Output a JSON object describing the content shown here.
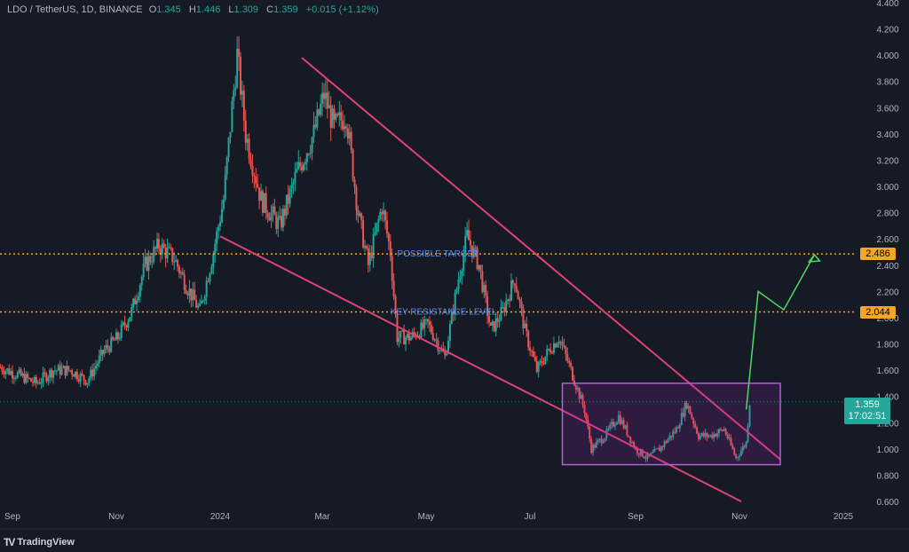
{
  "header": {
    "symbol": "LDO / TetherUS, 1D, BINANCE",
    "open_label": "O",
    "open": "1.345",
    "high_label": "H",
    "high": "1.446",
    "low_label": "L",
    "low": "1.309",
    "close_label": "C",
    "close": "1.359",
    "change": "+0.015 (+1.12%)"
  },
  "annotations": {
    "possible_target": "POSSIBLE TARGET",
    "key_resistance": "KEY RESISTANCE LEVEL"
  },
  "price_tags": {
    "target": "2.486",
    "resistance": "2.044",
    "last_price": "1.359",
    "countdown": "17:02:51"
  },
  "branding": {
    "name": "TradingView"
  },
  "colors": {
    "background": "#161a25",
    "up": "#26a69a",
    "down": "#ef5350",
    "channel": "#e0407a",
    "range_box": "#b05fd0",
    "level_line": "#f5a623",
    "projection": "#4cd964"
  },
  "chart_data": {
    "type": "candlestick",
    "y_axis_ticks": [
      "4.400",
      "4.200",
      "4.000",
      "3.800",
      "3.600",
      "3.400",
      "3.200",
      "3.000",
      "2.800",
      "2.600",
      "2.400",
      "2.200",
      "2.000",
      "1.800",
      "1.600",
      "1.400",
      "1.200",
      "1.000",
      "0.800",
      "0.600"
    ],
    "x_axis_ticks": [
      "Sep",
      "Nov",
      "2024",
      "Mar",
      "May",
      "Jul",
      "Sep",
      "Nov",
      "2025"
    ],
    "ylim": [
      0.6,
      4.4
    ],
    "horizontal_levels": [
      {
        "label": "POSSIBLE TARGET",
        "value": 2.486
      },
      {
        "label": "KEY RESISTANCE LEVEL",
        "value": 2.044
      }
    ],
    "last_price": 1.359,
    "price_path": [
      [
        "2023-08-25",
        1.62
      ],
      [
        "2023-09-05",
        1.56
      ],
      [
        "2023-09-15",
        1.5
      ],
      [
        "2023-09-25",
        1.6
      ],
      [
        "2023-10-05",
        1.6
      ],
      [
        "2023-10-15",
        1.52
      ],
      [
        "2023-10-25",
        1.75
      ],
      [
        "2023-11-02",
        1.85
      ],
      [
        "2023-11-10",
        2.05
      ],
      [
        "2023-11-18",
        2.4
      ],
      [
        "2023-11-26",
        2.55
      ],
      [
        "2023-12-05",
        2.45
      ],
      [
        "2023-12-12",
        2.25
      ],
      [
        "2023-12-20",
        2.05
      ],
      [
        "2023-12-28",
        2.5
      ],
      [
        "2024-01-03",
        2.9
      ],
      [
        "2024-01-08",
        3.6
      ],
      [
        "2024-01-11",
        4.0
      ],
      [
        "2024-01-16",
        3.4
      ],
      [
        "2024-01-25",
        2.9
      ],
      [
        "2024-02-05",
        2.7
      ],
      [
        "2024-02-15",
        3.1
      ],
      [
        "2024-02-25",
        3.4
      ],
      [
        "2024-03-02",
        3.7
      ],
      [
        "2024-03-08",
        3.45
      ],
      [
        "2024-03-15",
        3.55
      ],
      [
        "2024-03-22",
        2.8
      ],
      [
        "2024-03-28",
        2.4
      ],
      [
        "2024-04-05",
        2.85
      ],
      [
        "2024-04-10",
        2.5
      ],
      [
        "2024-04-14",
        1.85
      ],
      [
        "2024-04-22",
        1.85
      ],
      [
        "2024-05-02",
        1.95
      ],
      [
        "2024-05-12",
        1.7
      ],
      [
        "2024-05-20",
        2.3
      ],
      [
        "2024-05-25",
        2.62
      ],
      [
        "2024-06-01",
        2.4
      ],
      [
        "2024-06-08",
        1.9
      ],
      [
        "2024-06-15",
        2.05
      ],
      [
        "2024-06-22",
        2.3
      ],
      [
        "2024-06-28",
        1.9
      ],
      [
        "2024-07-05",
        1.6
      ],
      [
        "2024-07-12",
        1.75
      ],
      [
        "2024-07-18",
        1.85
      ],
      [
        "2024-07-25",
        1.6
      ],
      [
        "2024-08-02",
        1.3
      ],
      [
        "2024-08-06",
        1.0
      ],
      [
        "2024-08-14",
        1.1
      ],
      [
        "2024-08-22",
        1.25
      ],
      [
        "2024-09-01",
        1.0
      ],
      [
        "2024-09-08",
        0.93
      ],
      [
        "2024-09-15",
        1.0
      ],
      [
        "2024-09-25",
        1.15
      ],
      [
        "2024-10-01",
        1.35
      ],
      [
        "2024-10-08",
        1.1
      ],
      [
        "2024-10-15",
        1.1
      ],
      [
        "2024-10-23",
        1.15
      ],
      [
        "2024-10-30",
        0.93
      ],
      [
        "2024-11-05",
        1.05
      ],
      [
        "2024-11-07",
        1.36
      ]
    ],
    "channel_upper": [
      [
        "2024-02-18",
        3.98
      ],
      [
        "2024-11-25",
        0.92
      ]
    ],
    "channel_lower": [
      [
        "2024-01-01",
        2.62
      ],
      [
        "2024-11-02",
        0.6
      ]
    ],
    "range_box": {
      "x_start": "2024-07-20",
      "x_end": "2024-11-25",
      "y_top": 1.5,
      "y_bottom": 0.88
    },
    "projection_path": [
      [
        "2024-11-05",
        1.3
      ],
      [
        "2024-11-12",
        2.2
      ],
      [
        "2024-11-27",
        2.06
      ],
      [
        "2024-12-15",
        2.48
      ]
    ],
    "grid": false,
    "legend": "none"
  }
}
